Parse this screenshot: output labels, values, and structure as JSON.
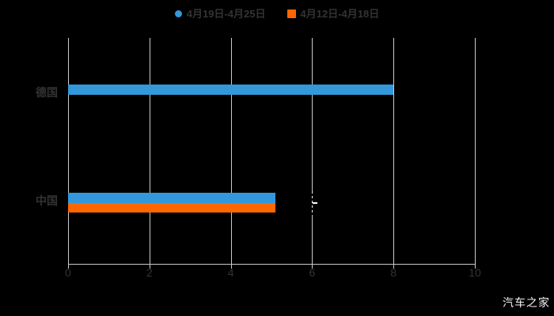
{
  "page": {
    "background": "#000000",
    "watermark": "汽车之家",
    "watermark_color": "#F2F2F2"
  },
  "legend": {
    "text_color": "#333333",
    "items": [
      {
        "label": "4月19日-4月25日",
        "color": "#3398DB",
        "marker": "circle"
      },
      {
        "label": "4月12日-4月18日",
        "color": "#FF6600",
        "marker": "square"
      }
    ]
  },
  "chart_data": {
    "type": "bar",
    "orientation": "horizontal",
    "title": "",
    "xlabel": "",
    "ylabel": "",
    "categories": [
      "德国",
      "中国"
    ],
    "series": [
      {
        "name": "4月19日-4月25日",
        "color": "#3398DB",
        "values": [
          8.0,
          5.1
        ]
      },
      {
        "name": "4月12日-4月18日",
        "color": "#FF6600",
        "values": [
          null,
          5.1
        ]
      }
    ],
    "xlim": [
      0,
      10
    ],
    "xticks": [
      "0",
      "2",
      "4",
      "6",
      "8",
      "10"
    ],
    "grid": true,
    "gridline_color": "#CCCCCC",
    "axis_line_color": "#C9C9C9",
    "axis_label_color": "#333333",
    "legend_position": "top",
    "axis_pointer": {
      "x_value": 6,
      "category": "中国",
      "style": "dashed",
      "color": "#FFFFFF"
    }
  }
}
